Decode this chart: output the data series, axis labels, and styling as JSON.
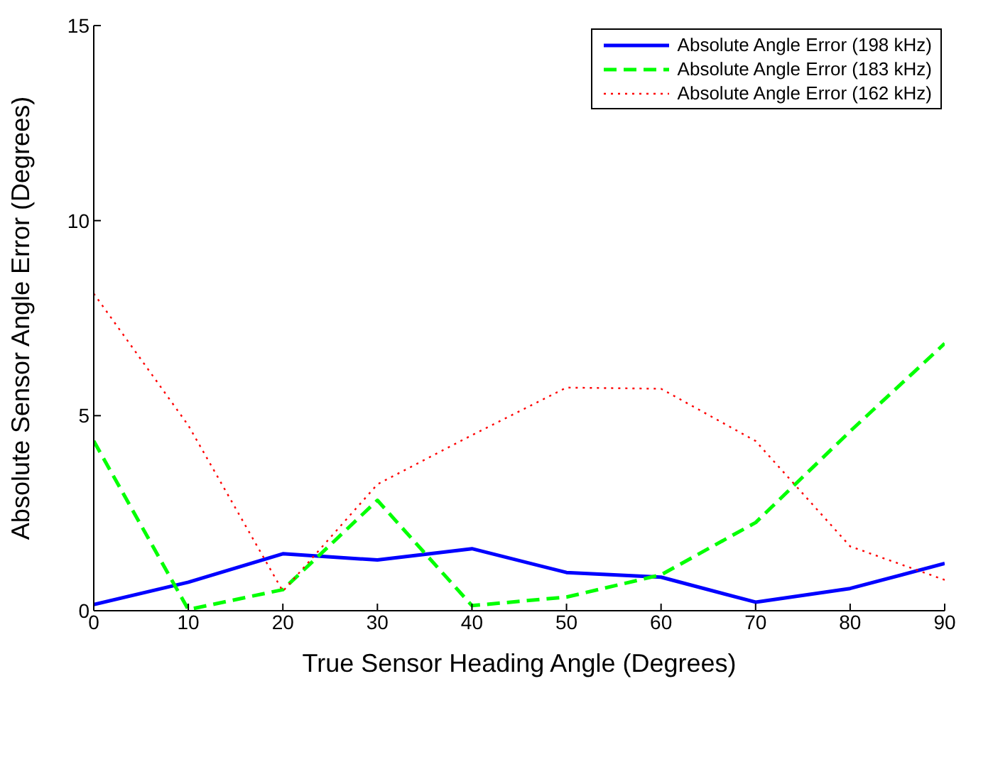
{
  "chart_data": {
    "type": "line",
    "xlabel": "True Sensor Heading Angle (Degrees)",
    "ylabel": "Absolute Sensor Angle Error (Degrees)",
    "x": [
      0,
      10,
      20,
      30,
      40,
      50,
      60,
      70,
      80,
      90
    ],
    "xlim": [
      0,
      90
    ],
    "xticks": [
      0,
      10,
      20,
      30,
      40,
      50,
      60,
      70,
      80,
      90
    ],
    "ylim": [
      0,
      15
    ],
    "yticks": [
      0,
      5,
      10,
      15
    ],
    "grid": false,
    "legend": "top right",
    "marker": "none",
    "series": [
      {
        "name": "Absolute Angle Error (198 kHz)",
        "color": "#0000ff",
        "line_style": "solid",
        "values": [
          0.16,
          0.73,
          1.46,
          1.3,
          1.59,
          0.98,
          0.86,
          0.22,
          0.57,
          1.21
        ]
      },
      {
        "name": "Absolute Angle Error (183 kHz)",
        "color": "#00ff00",
        "line_style": "dashed",
        "values": [
          4.35,
          0.03,
          0.54,
          2.83,
          0.13,
          0.35,
          0.92,
          2.26,
          4.6,
          6.85
        ]
      },
      {
        "name": "Absolute Angle Error (162 kHz)",
        "color": "#ff0000",
        "line_style": "dotted",
        "values": [
          8.13,
          4.75,
          0.5,
          3.24,
          4.5,
          5.72,
          5.69,
          4.35,
          1.65,
          0.79
        ]
      }
    ]
  }
}
